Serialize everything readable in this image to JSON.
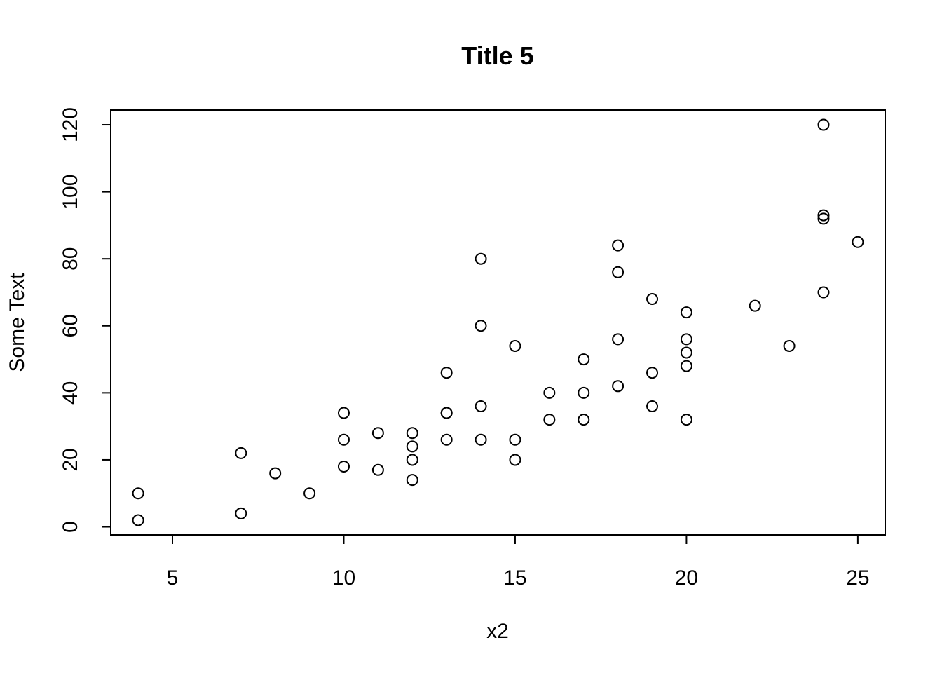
{
  "chart_data": {
    "type": "scatter",
    "title": "Title 5",
    "xlabel": "x2",
    "ylabel": "Some Text",
    "xlim": [
      3.2,
      25.8
    ],
    "ylim": [
      -2.4,
      124.4
    ],
    "xticks": [
      5,
      10,
      15,
      20,
      25
    ],
    "yticks": [
      0,
      20,
      40,
      60,
      80,
      100,
      120
    ],
    "xtick_labels": [
      "5",
      "10",
      "15",
      "20",
      "25"
    ],
    "ytick_labels": [
      "0",
      "20",
      "40",
      "60",
      "80",
      "100",
      "120"
    ],
    "grid": false,
    "marker": "open-circle",
    "points": [
      {
        "x": 4,
        "y": 2
      },
      {
        "x": 4,
        "y": 10
      },
      {
        "x": 7,
        "y": 4
      },
      {
        "x": 7,
        "y": 22
      },
      {
        "x": 8,
        "y": 16
      },
      {
        "x": 9,
        "y": 10
      },
      {
        "x": 10,
        "y": 18
      },
      {
        "x": 10,
        "y": 26
      },
      {
        "x": 10,
        "y": 34
      },
      {
        "x": 11,
        "y": 17
      },
      {
        "x": 11,
        "y": 28
      },
      {
        "x": 12,
        "y": 14
      },
      {
        "x": 12,
        "y": 20
      },
      {
        "x": 12,
        "y": 24
      },
      {
        "x": 12,
        "y": 28
      },
      {
        "x": 13,
        "y": 26
      },
      {
        "x": 13,
        "y": 34
      },
      {
        "x": 13,
        "y": 34
      },
      {
        "x": 13,
        "y": 46
      },
      {
        "x": 14,
        "y": 26
      },
      {
        "x": 14,
        "y": 36
      },
      {
        "x": 14,
        "y": 60
      },
      {
        "x": 14,
        "y": 80
      },
      {
        "x": 15,
        "y": 20
      },
      {
        "x": 15,
        "y": 26
      },
      {
        "x": 15,
        "y": 54
      },
      {
        "x": 16,
        "y": 32
      },
      {
        "x": 16,
        "y": 40
      },
      {
        "x": 17,
        "y": 32
      },
      {
        "x": 17,
        "y": 40
      },
      {
        "x": 17,
        "y": 50
      },
      {
        "x": 18,
        "y": 42
      },
      {
        "x": 18,
        "y": 56
      },
      {
        "x": 18,
        "y": 76
      },
      {
        "x": 18,
        "y": 84
      },
      {
        "x": 19,
        "y": 36
      },
      {
        "x": 19,
        "y": 46
      },
      {
        "x": 19,
        "y": 68
      },
      {
        "x": 20,
        "y": 32
      },
      {
        "x": 20,
        "y": 48
      },
      {
        "x": 20,
        "y": 52
      },
      {
        "x": 20,
        "y": 56
      },
      {
        "x": 20,
        "y": 64
      },
      {
        "x": 22,
        "y": 66
      },
      {
        "x": 23,
        "y": 54
      },
      {
        "x": 24,
        "y": 70
      },
      {
        "x": 24,
        "y": 92
      },
      {
        "x": 24,
        "y": 93
      },
      {
        "x": 24,
        "y": 120
      },
      {
        "x": 25,
        "y": 85
      }
    ]
  }
}
